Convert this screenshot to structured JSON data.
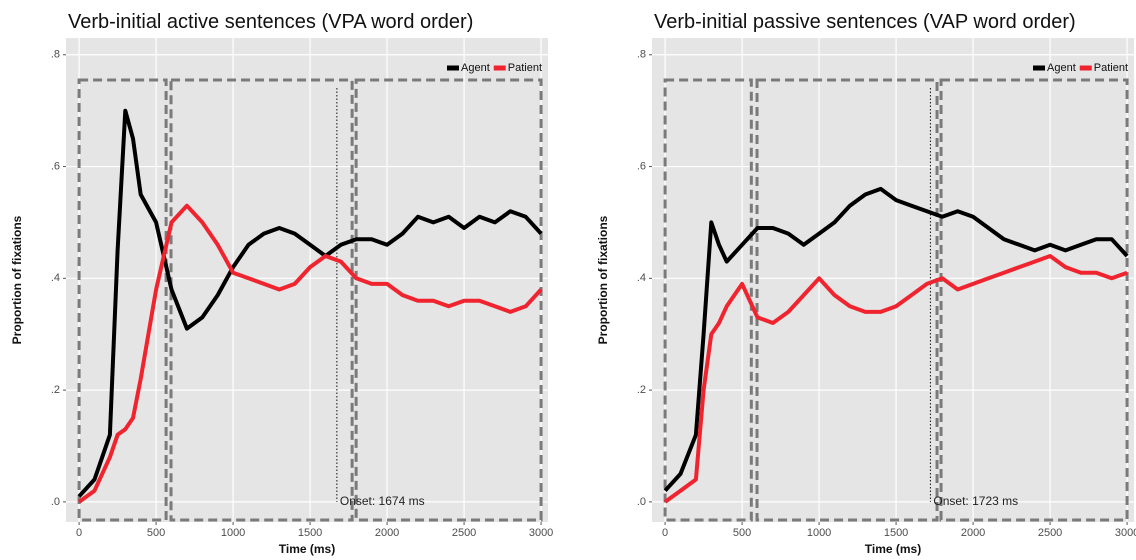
{
  "chart_data": [
    {
      "type": "line",
      "title": "Verb-initial active sentences (VPA word order)",
      "xlabel": "Time (ms)",
      "ylabel": "Proportion of fixations",
      "x": [
        0,
        100,
        200,
        250,
        300,
        350,
        400,
        500,
        600,
        700,
        800,
        900,
        1000,
        1100,
        1200,
        1300,
        1400,
        1500,
        1600,
        1700,
        1800,
        1900,
        2000,
        2100,
        2200,
        2300,
        2400,
        2500,
        2600,
        2700,
        2800,
        2900,
        3000
      ],
      "series": [
        {
          "name": "Agent",
          "color": "#000000",
          "values": [
            0.01,
            0.04,
            0.12,
            0.45,
            0.7,
            0.65,
            0.55,
            0.5,
            0.38,
            0.31,
            0.33,
            0.37,
            0.42,
            0.46,
            0.48,
            0.49,
            0.48,
            0.46,
            0.44,
            0.46,
            0.47,
            0.47,
            0.46,
            0.48,
            0.51,
            0.5,
            0.51,
            0.49,
            0.51,
            0.5,
            0.52,
            0.51,
            0.48
          ]
        },
        {
          "name": "Patient",
          "color": "#f0242f",
          "values": [
            0.0,
            0.02,
            0.08,
            0.12,
            0.13,
            0.15,
            0.22,
            0.38,
            0.5,
            0.53,
            0.5,
            0.46,
            0.41,
            0.4,
            0.39,
            0.38,
            0.39,
            0.42,
            0.44,
            0.43,
            0.4,
            0.39,
            0.39,
            0.37,
            0.36,
            0.36,
            0.35,
            0.36,
            0.36,
            0.35,
            0.34,
            0.35,
            0.38
          ]
        }
      ],
      "xlim": [
        -85,
        3045
      ],
      "ylim": [
        -0.036,
        0.83
      ],
      "xticks": [
        0,
        500,
        1000,
        1500,
        2000,
        2500,
        3000
      ],
      "yticks": [
        {
          "value": 0,
          "label": ".0"
        },
        {
          "value": 0.2,
          "label": ".2"
        },
        {
          "value": 0.4,
          "label": ".4"
        },
        {
          "value": 0.6,
          "label": ".6"
        },
        {
          "value": 0.8,
          "label": ".8"
        }
      ],
      "grid": true,
      "legend": "top-right",
      "windows": [
        {
          "start": 0,
          "end": 565
        },
        {
          "start": 597,
          "end": 1773
        },
        {
          "start": 1799,
          "end": 3000
        }
      ],
      "onset": 1674,
      "annotation": "Onset: 1674 ms"
    },
    {
      "type": "line",
      "title": "Verb-initial passive sentences (VAP word order)",
      "xlabel": "Time (ms)",
      "ylabel": "Proportion of fixations",
      "x": [
        0,
        100,
        200,
        250,
        300,
        350,
        400,
        500,
        600,
        700,
        800,
        900,
        1000,
        1100,
        1200,
        1300,
        1400,
        1500,
        1600,
        1700,
        1800,
        1900,
        2000,
        2100,
        2200,
        2300,
        2400,
        2500,
        2600,
        2700,
        2800,
        2900,
        3000
      ],
      "series": [
        {
          "name": "Agent",
          "color": "#000000",
          "values": [
            0.02,
            0.05,
            0.12,
            0.3,
            0.5,
            0.46,
            0.43,
            0.46,
            0.49,
            0.49,
            0.48,
            0.46,
            0.48,
            0.5,
            0.53,
            0.55,
            0.56,
            0.54,
            0.53,
            0.52,
            0.51,
            0.52,
            0.51,
            0.49,
            0.47,
            0.46,
            0.45,
            0.46,
            0.45,
            0.46,
            0.47,
            0.47,
            0.44
          ]
        },
        {
          "name": "Patient",
          "color": "#f0242f",
          "values": [
            0.0,
            0.02,
            0.04,
            0.2,
            0.3,
            0.32,
            0.35,
            0.39,
            0.33,
            0.32,
            0.34,
            0.37,
            0.4,
            0.37,
            0.35,
            0.34,
            0.34,
            0.35,
            0.37,
            0.39,
            0.4,
            0.38,
            0.39,
            0.4,
            0.41,
            0.42,
            0.43,
            0.44,
            0.42,
            0.41,
            0.41,
            0.4,
            0.41
          ]
        }
      ],
      "xlim": [
        -85,
        3045
      ],
      "ylim": [
        -0.036,
        0.83
      ],
      "xticks": [
        0,
        500,
        1000,
        1500,
        2000,
        2500,
        3000
      ],
      "yticks": [
        {
          "value": 0,
          "label": ".0"
        },
        {
          "value": 0.2,
          "label": ".2"
        },
        {
          "value": 0.4,
          "label": ".4"
        },
        {
          "value": 0.6,
          "label": ".6"
        },
        {
          "value": 0.8,
          "label": ".8"
        }
      ],
      "grid": true,
      "legend": "top-right",
      "windows": [
        {
          "start": 0,
          "end": 560
        },
        {
          "start": 597,
          "end": 1766
        },
        {
          "start": 1792,
          "end": 3000
        }
      ],
      "onset": 1723,
      "annotation": "Onset: 1723 ms"
    }
  ]
}
